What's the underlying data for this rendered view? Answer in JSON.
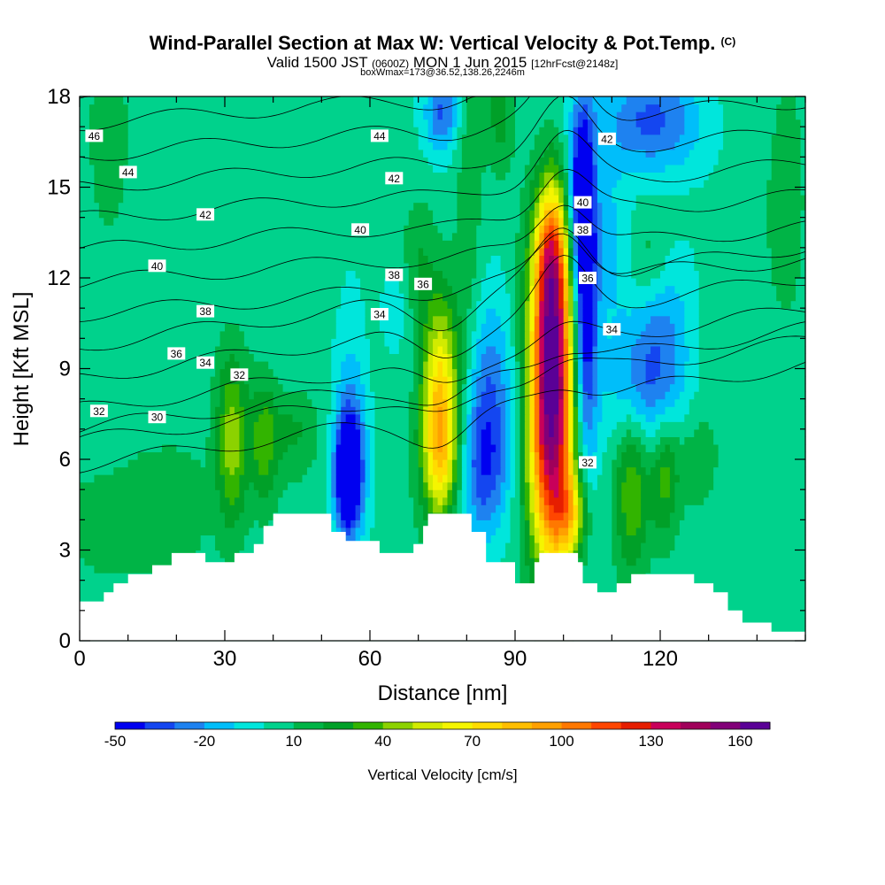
{
  "title": {
    "main": "Wind-Parallel Section at Max W: Vertical Velocity & Pot.Temp.",
    "main_suffix": "(C)",
    "valid_prefix": "Valid 1500 JST",
    "valid_z": "(0600Z)",
    "valid_date": "MON 1 Jun 2015",
    "valid_fcst": "[12hrFcst@2148z]",
    "box": "boxWmax=173@36.52,138.26,2246m"
  },
  "chart_data": {
    "type": "heatmap",
    "xlabel": "Distance [nm]",
    "ylabel": "Height [Kft MSL]",
    "xlim": [
      0,
      150
    ],
    "ylim": [
      0,
      18
    ],
    "x_ticks": [
      0,
      30,
      60,
      90,
      120
    ],
    "y_ticks": [
      0,
      3,
      6,
      9,
      12,
      15,
      18
    ],
    "colorbar": {
      "label": "Vertical Velocity [cm/s]",
      "min": -50,
      "max": 170,
      "step": 10,
      "tick_values": [
        -50,
        -20,
        10,
        40,
        70,
        100,
        130,
        160
      ],
      "colors": [
        "#0000f0",
        "#1446f0",
        "#1e82f0",
        "#00befa",
        "#00e6dc",
        "#00d28c",
        "#00b446",
        "#00a028",
        "#32b400",
        "#8cd200",
        "#d2eb00",
        "#f5f500",
        "#ffdc00",
        "#ffbe00",
        "#ffa000",
        "#ff7800",
        "#ff4600",
        "#e61e00",
        "#c8005a",
        "#a0005a",
        "#820078",
        "#5a0096"
      ]
    },
    "terrain_kft": [
      [
        0,
        1.3
      ],
      [
        5,
        1.6
      ],
      [
        7,
        1.9
      ],
      [
        10,
        2.2
      ],
      [
        15,
        2.5
      ],
      [
        19,
        2.9
      ],
      [
        25,
        2.9
      ],
      [
        26,
        2.6
      ],
      [
        30,
        2.6
      ],
      [
        32,
        2.9
      ],
      [
        36,
        3.2
      ],
      [
        38,
        3.8
      ],
      [
        40,
        4.2
      ],
      [
        51,
        4.2
      ],
      [
        52,
        3.6
      ],
      [
        55,
        3.3
      ],
      [
        60,
        3.3
      ],
      [
        62,
        2.9
      ],
      [
        66,
        2.9
      ],
      [
        69,
        3.2
      ],
      [
        71,
        3.8
      ],
      [
        72,
        4.2
      ],
      [
        80,
        4.2
      ],
      [
        81,
        3.6
      ],
      [
        84,
        2.6
      ],
      [
        88,
        2.6
      ],
      [
        90,
        1.9
      ],
      [
        94,
        2.6
      ],
      [
        95,
        2.9
      ],
      [
        101,
        2.9
      ],
      [
        103,
        2.6
      ],
      [
        104,
        1.9
      ],
      [
        107,
        1.6
      ],
      [
        111,
        1.9
      ],
      [
        114,
        2.2
      ],
      [
        125,
        2.2
      ],
      [
        127,
        1.9
      ],
      [
        131,
        1.6
      ],
      [
        134,
        1.0
      ],
      [
        137,
        0.6
      ],
      [
        140,
        0.6
      ],
      [
        143,
        0.3
      ],
      [
        150,
        0.3
      ]
    ],
    "w_features": [
      {
        "x": 97.5,
        "y": 8.0,
        "sx": 3.2,
        "sy": 3.6,
        "amp": 165
      },
      {
        "x": 97.5,
        "y": 12.5,
        "sx": 2.2,
        "sy": 1.8,
        "amp": 70
      },
      {
        "x": 74.5,
        "y": 8.2,
        "sx": 2.8,
        "sy": 2.3,
        "amp": 68
      },
      {
        "x": 74.5,
        "y": 6.0,
        "sx": 2.5,
        "sy": 1.5,
        "amp": 40
      },
      {
        "x": 101.5,
        "y": 4.2,
        "sx": 2.5,
        "sy": 1.0,
        "amp": 50
      },
      {
        "x": 55.5,
        "y": 5.5,
        "sx": 1.8,
        "sy": 1.2,
        "amp": -70
      },
      {
        "x": 56,
        "y": 6.8,
        "sx": 2.5,
        "sy": 2.5,
        "amp": -30
      },
      {
        "x": 104.5,
        "y": 11.2,
        "sx": 1.8,
        "sy": 3.8,
        "amp": -62
      },
      {
        "x": 103.5,
        "y": 15.0,
        "sx": 1.8,
        "sy": 2.0,
        "amp": -40
      },
      {
        "x": 84.5,
        "y": 8.0,
        "sx": 3.5,
        "sy": 2.3,
        "amp": -35
      },
      {
        "x": 83.5,
        "y": 5.5,
        "sx": 3.5,
        "sy": 1.5,
        "amp": -25
      },
      {
        "x": 116.5,
        "y": 8.5,
        "sx": 6.0,
        "sy": 1.5,
        "amp": -30
      },
      {
        "x": 120.5,
        "y": 11.0,
        "sx": 4.0,
        "sy": 1.8,
        "amp": -20
      },
      {
        "x": 118,
        "y": 17.2,
        "sx": 8.0,
        "sy": 1.2,
        "amp": -35
      },
      {
        "x": 75,
        "y": 17.5,
        "sx": 2.5,
        "sy": 1.0,
        "amp": -35
      },
      {
        "x": 110,
        "y": 13.0,
        "sx": 3.0,
        "sy": 2.0,
        "amp": -15
      },
      {
        "x": 65,
        "y": 11.0,
        "sx": 2.0,
        "sy": 1.0,
        "amp": -10
      },
      {
        "x": 31.5,
        "y": 6.5,
        "sx": 2.3,
        "sy": 2.0,
        "amp": 42
      },
      {
        "x": 38,
        "y": 6.5,
        "sx": 2.0,
        "sy": 1.5,
        "amp": 28
      },
      {
        "x": 44,
        "y": 7.0,
        "sx": 4.0,
        "sy": 1.0,
        "amp": 18
      },
      {
        "x": 114,
        "y": 5.0,
        "sx": 2.5,
        "sy": 2.0,
        "amp": 35
      },
      {
        "x": 121,
        "y": 5.5,
        "sx": 2.0,
        "sy": 1.5,
        "amp": 28
      },
      {
        "x": 128,
        "y": 6.0,
        "sx": 3.0,
        "sy": 1.2,
        "amp": 15
      },
      {
        "x": 80.5,
        "y": 14.0,
        "sx": 2.0,
        "sy": 3.5,
        "amp": 15
      },
      {
        "x": 87,
        "y": 17.5,
        "sx": 2.0,
        "sy": 1.5,
        "amp": 20
      },
      {
        "x": 118,
        "y": 12.5,
        "sx": 3.0,
        "sy": 1.2,
        "amp": 15
      },
      {
        "x": 146,
        "y": 15.0,
        "sx": 2.5,
        "sy": 3.0,
        "amp": 15
      },
      {
        "x": 6,
        "y": 16.0,
        "sx": 3.0,
        "sy": 2.5,
        "amp": 12
      },
      {
        "x": 7,
        "y": 4.0,
        "sx": 8.0,
        "sy": 1.5,
        "amp": 12
      },
      {
        "x": 20,
        "y": 4.5,
        "sx": 6.0,
        "sy": 1.5,
        "amp": 10
      },
      {
        "x": 70,
        "y": 12.5,
        "sx": 2.0,
        "sy": 1.5,
        "amp": 12
      }
    ],
    "theta_levels": [
      30,
      31,
      32,
      33,
      34,
      35,
      36,
      37,
      38,
      39,
      40,
      41,
      42,
      43,
      44,
      45,
      46,
      47
    ],
    "theta_labels": [
      {
        "text": "46",
        "x": 3,
        "y": 16.7
      },
      {
        "text": "44",
        "x": 10,
        "y": 15.5
      },
      {
        "text": "44",
        "x": 62,
        "y": 16.7
      },
      {
        "text": "42",
        "x": 26,
        "y": 14.1
      },
      {
        "text": "42",
        "x": 65,
        "y": 15.3
      },
      {
        "text": "42",
        "x": 109,
        "y": 16.6
      },
      {
        "text": "40",
        "x": 16,
        "y": 12.4
      },
      {
        "text": "40",
        "x": 58,
        "y": 13.6
      },
      {
        "text": "40",
        "x": 104,
        "y": 14.5
      },
      {
        "text": "38",
        "x": 26,
        "y": 10.9
      },
      {
        "text": "38",
        "x": 65,
        "y": 12.1
      },
      {
        "text": "38",
        "x": 104,
        "y": 13.6
      },
      {
        "text": "36",
        "x": 20,
        "y": 9.5
      },
      {
        "text": "36",
        "x": 71,
        "y": 11.8
      },
      {
        "text": "36",
        "x": 105,
        "y": 12.0
      },
      {
        "text": "34",
        "x": 26,
        "y": 9.2
      },
      {
        "text": "34",
        "x": 62,
        "y": 10.8
      },
      {
        "text": "34",
        "x": 110,
        "y": 10.3
      },
      {
        "text": "32",
        "x": 33,
        "y": 8.8
      },
      {
        "text": "32",
        "x": 4,
        "y": 7.6
      },
      {
        "text": "32",
        "x": 105,
        "y": 5.9
      },
      {
        "text": "30",
        "x": 16,
        "y": 7.4
      }
    ]
  }
}
